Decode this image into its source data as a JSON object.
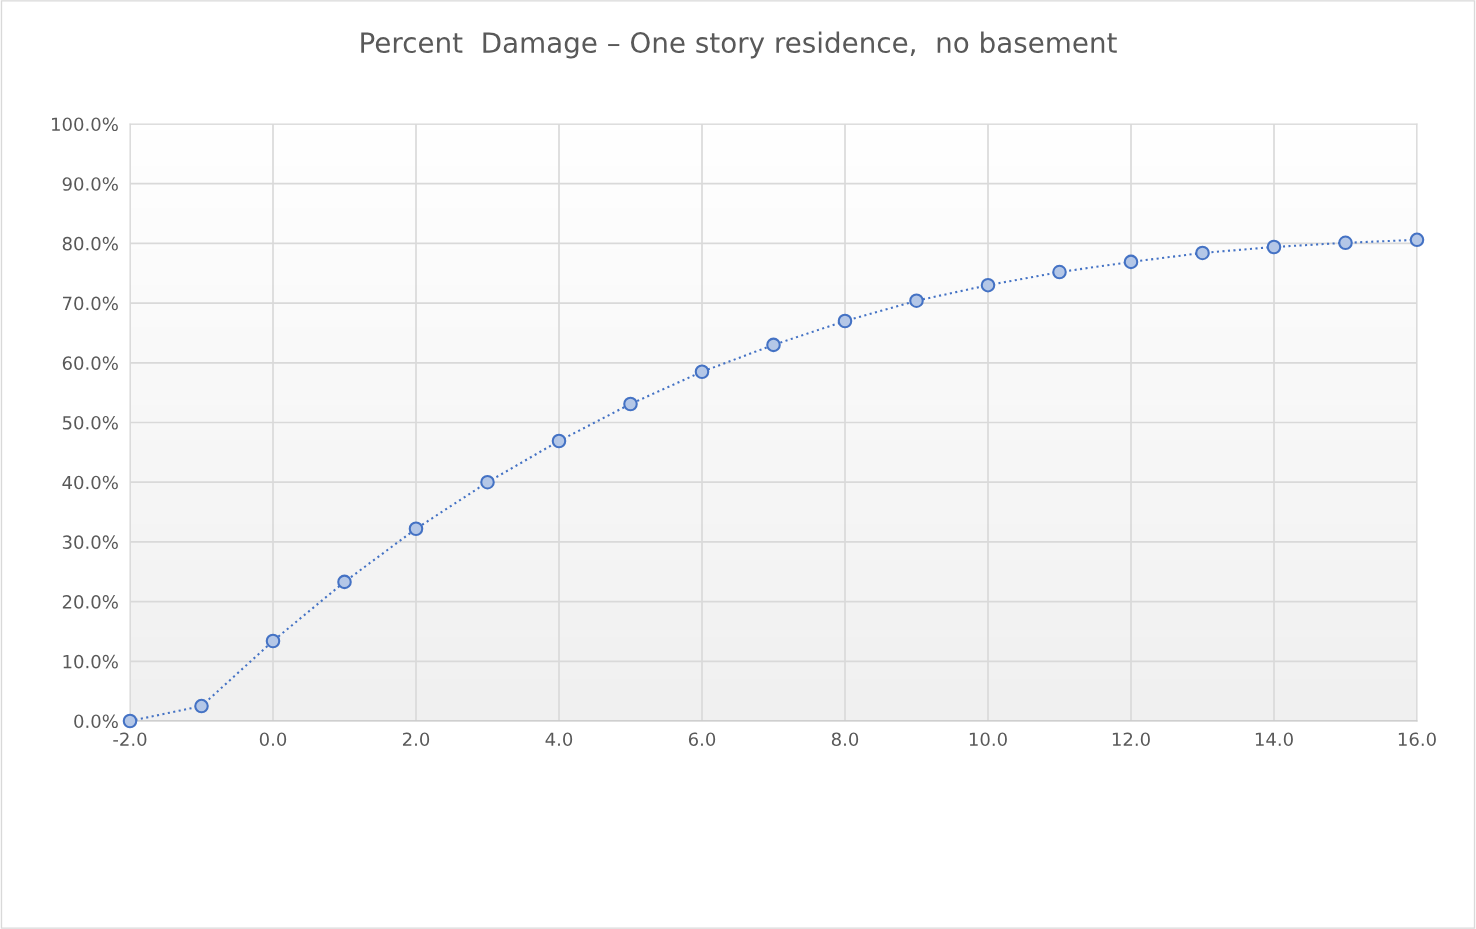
{
  "chart_data": {
    "type": "line",
    "title": "Percent  Damage – One story residence,  no basement",
    "x": [
      -2,
      -1,
      0,
      1,
      2,
      3,
      4,
      5,
      6,
      7,
      8,
      9,
      10,
      11,
      12,
      13,
      14,
      15,
      16
    ],
    "series": [
      {
        "color": "#4472c4",
        "values": [
          0,
          2.5,
          13.4,
          23.3,
          32.2,
          40.0,
          46.9,
          53.1,
          58.5,
          63.0,
          67.0,
          70.4,
          73.0,
          75.2,
          76.9,
          78.4,
          79.4,
          80.1,
          80.6
        ]
      }
    ],
    "xlim": [
      -2,
      16
    ],
    "xticks": [
      {
        "value": -2,
        "label": "-2.0"
      },
      {
        "value": 0,
        "label": "0.0"
      },
      {
        "value": 2,
        "label": "2.0"
      },
      {
        "value": 4,
        "label": "4.0"
      },
      {
        "value": 6,
        "label": "6.0"
      },
      {
        "value": 8,
        "label": "8.0"
      },
      {
        "value": 10,
        "label": "10.0"
      },
      {
        "value": 12,
        "label": "12.0"
      },
      {
        "value": 14,
        "label": "14.0"
      },
      {
        "value": 16,
        "label": "16.0"
      }
    ],
    "ylim": [
      0,
      100
    ],
    "yticks": [
      {
        "value": 0,
        "label": "0.0%"
      },
      {
        "value": 10,
        "label": "10.0%"
      },
      {
        "value": 20,
        "label": "20.0%"
      },
      {
        "value": 30,
        "label": "30.0%"
      },
      {
        "value": 40,
        "label": "40.0%"
      },
      {
        "value": 50,
        "label": "50.0%"
      },
      {
        "value": 60,
        "label": "60.0%"
      },
      {
        "value": 70,
        "label": "70.0%"
      },
      {
        "value": 80,
        "label": "80.0%"
      },
      {
        "value": 90,
        "label": "90.0%"
      },
      {
        "value": 100,
        "label": "100.0%"
      }
    ],
    "grid": true,
    "marker": "circle",
    "line_style": "dotted"
  }
}
